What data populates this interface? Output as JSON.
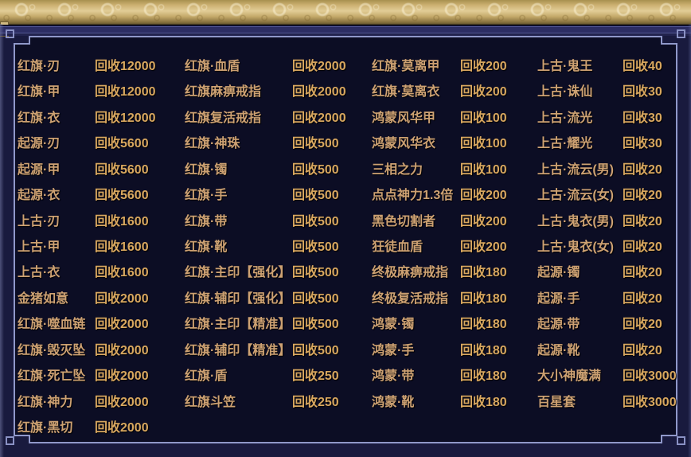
{
  "panel": {
    "kind": "recycle-price-list",
    "price_prefix": "回收"
  },
  "colors": {
    "item_name": "#cda172",
    "item_price": "#d8a75f",
    "panel_border": "#9098ca",
    "panel_background": "#0c0d24",
    "gold_bar": "#cdb172",
    "outer_background": "#191a3e"
  },
  "columns": [
    {
      "items": [
        {
          "name": "红旗·刃",
          "price": "回收12000"
        },
        {
          "name": "红旗·甲",
          "price": "回收12000"
        },
        {
          "name": "红旗·衣",
          "price": "回收12000"
        },
        {
          "name": "起源·刃",
          "price": "回收5600"
        },
        {
          "name": "起源·甲",
          "price": "回收5600"
        },
        {
          "name": "起源·衣",
          "price": "回收5600"
        },
        {
          "name": "上古·刃",
          "price": "回收1600"
        },
        {
          "name": "上古·甲",
          "price": "回收1600"
        },
        {
          "name": "上古·衣",
          "price": "回收1600"
        },
        {
          "name": "金猪如意",
          "price": "回收2000"
        },
        {
          "name": "红旗·噬血链",
          "price": "回收2000"
        },
        {
          "name": "红旗·毁灭坠",
          "price": "回收2000"
        },
        {
          "name": "红旗·死亡坠",
          "price": "回收2000"
        },
        {
          "name": "红旗·神力",
          "price": "回收2000"
        },
        {
          "name": "红旗·黑切",
          "price": "回收2000"
        }
      ]
    },
    {
      "items": [
        {
          "name": "红旗·血盾",
          "price": "回收2000"
        },
        {
          "name": "红旗麻痹戒指",
          "price": "回收2000"
        },
        {
          "name": "红旗复活戒指",
          "price": "回收2000"
        },
        {
          "name": "红旗·神珠",
          "price": "回收500"
        },
        {
          "name": "红旗·镯",
          "price": "回收500"
        },
        {
          "name": "红旗·手",
          "price": "回收500"
        },
        {
          "name": "红旗·带",
          "price": "回收500"
        },
        {
          "name": "红旗·靴",
          "price": "回收500"
        },
        {
          "name": "红旗·主印【强化】",
          "price": "回收500"
        },
        {
          "name": "红旗·辅印【强化】",
          "price": "回收500"
        },
        {
          "name": "红旗·主印【精准】",
          "price": "回收500"
        },
        {
          "name": "红旗·辅印【精准】",
          "price": "回收500"
        },
        {
          "name": "红旗·盾",
          "price": "回收250"
        },
        {
          "name": "红旗斗笠",
          "price": "回收250"
        }
      ]
    },
    {
      "items": [
        {
          "name": "红旗·莫离甲",
          "price": "回收200"
        },
        {
          "name": "红旗·莫离衣",
          "price": "回收200"
        },
        {
          "name": "鸿蒙风华甲",
          "price": "回收100"
        },
        {
          "name": "鸿蒙风华衣",
          "price": "回收100"
        },
        {
          "name": "三相之力",
          "price": "回收100"
        },
        {
          "name": "点点神力1.3倍",
          "price": "回收200"
        },
        {
          "name": "黑色切割者",
          "price": "回收200"
        },
        {
          "name": "狂徒血盾",
          "price": "回收200"
        },
        {
          "name": "终极麻痹戒指",
          "price": "回收180"
        },
        {
          "name": "终极复活戒指",
          "price": "回收180"
        },
        {
          "name": "鸿蒙·镯",
          "price": "回收180"
        },
        {
          "name": "鸿蒙·手",
          "price": "回收180"
        },
        {
          "name": "鸿蒙·带",
          "price": "回收180"
        },
        {
          "name": "鸿蒙·靴",
          "price": "回收180"
        }
      ]
    },
    {
      "items": [
        {
          "name": "上古·鬼王",
          "price": "回收40"
        },
        {
          "name": "上古·诛仙",
          "price": "回收30"
        },
        {
          "name": "上古·流光",
          "price": "回收30"
        },
        {
          "name": "上古·耀光",
          "price": "回收30"
        },
        {
          "name": "上古·流云(男)",
          "price": "回收20"
        },
        {
          "name": "上古·流云(女)",
          "price": "回收20"
        },
        {
          "name": "上古·鬼衣(男)",
          "price": "回收20"
        },
        {
          "name": "上古·鬼衣(女)",
          "price": "回收20"
        },
        {
          "name": "起源·镯",
          "price": "回收20"
        },
        {
          "name": "起源·手",
          "price": "回收20"
        },
        {
          "name": "起源·带",
          "price": "回收20"
        },
        {
          "name": "起源·靴",
          "price": "回收20"
        },
        {
          "name": "大小神魔满",
          "price": "回收3000"
        },
        {
          "name": "百星套",
          "price": "回收3000"
        }
      ]
    }
  ]
}
